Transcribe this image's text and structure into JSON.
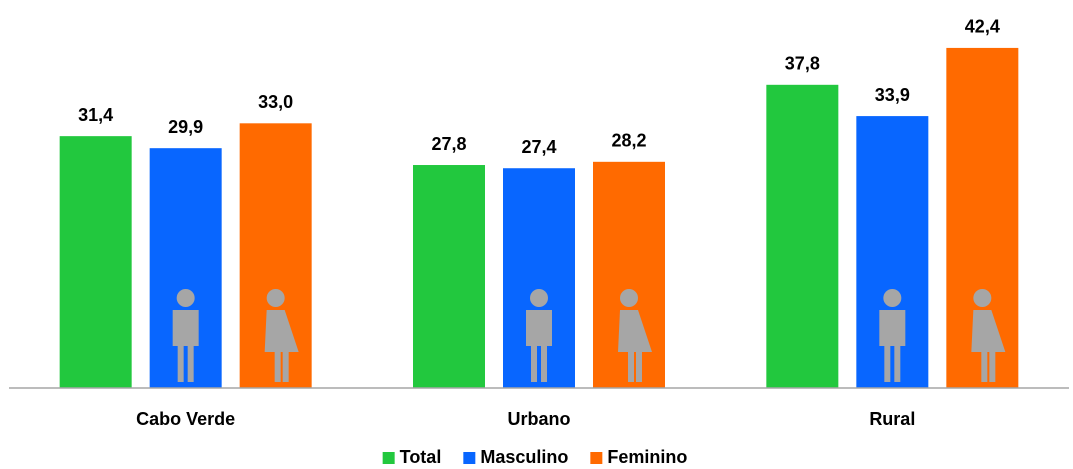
{
  "chart_data": {
    "type": "bar",
    "categories": [
      "Cabo Verde",
      "Urbano",
      "Rural"
    ],
    "series": [
      {
        "name": "Total",
        "color": "#22c83e",
        "values": [
          31.4,
          27.8,
          37.8
        ],
        "value_labels": [
          "31,4",
          "27,8",
          "37,8"
        ]
      },
      {
        "name": "Masculino",
        "color": "#0866ff",
        "values": [
          29.9,
          27.4,
          33.9
        ],
        "value_labels": [
          "29,9",
          "27,4",
          "33,9"
        ]
      },
      {
        "name": "Feminino",
        "color": "#ff6a00",
        "values": [
          33.0,
          28.2,
          42.4
        ],
        "value_labels": [
          "33,0",
          "28,2",
          "42,4"
        ]
      }
    ],
    "ylim": [
      0,
      48
    ]
  }
}
